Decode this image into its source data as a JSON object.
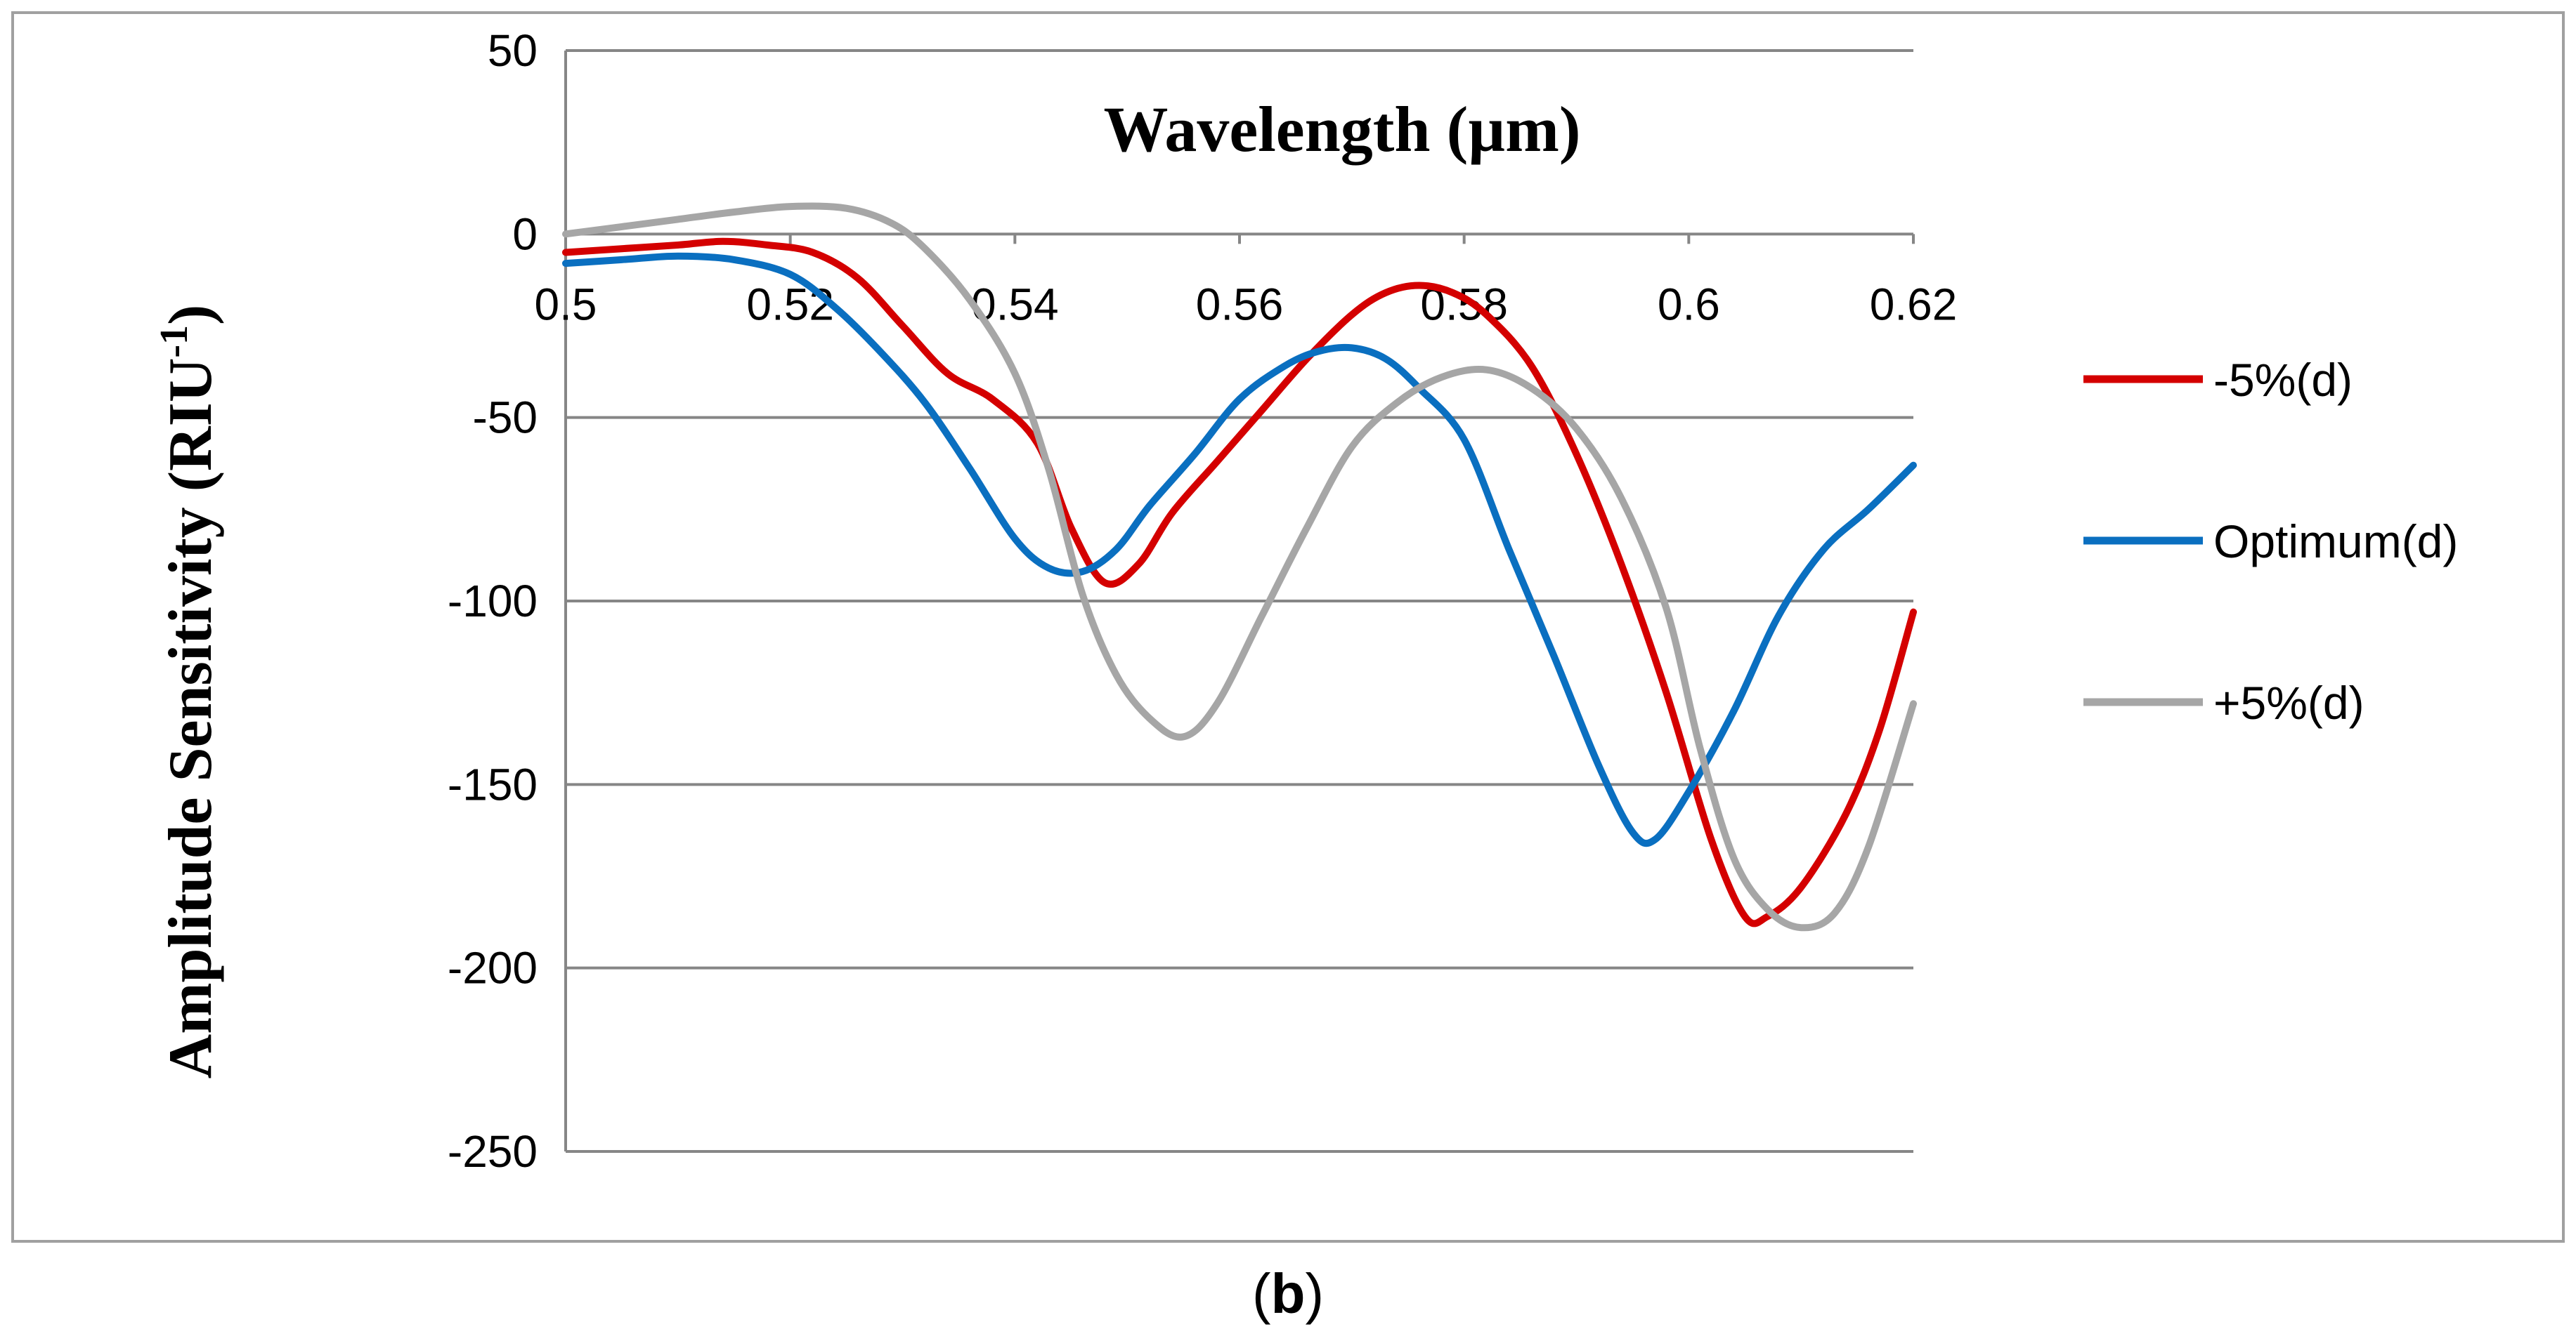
{
  "chart_data": {
    "type": "line",
    "title": "Wavelength (µm)",
    "xlabel": "Wavelength (µm)",
    "ylabel": "Amplitude Sensitivity  (RIU",
    "ylabel_sup": "-1",
    "ylabel_close": ")",
    "caption_open": "(",
    "caption_letter": "b",
    "caption_close": ")",
    "xlim": [
      0.5,
      0.62
    ],
    "ylim": [
      -250,
      50
    ],
    "x_ticks": [
      0.5,
      0.52,
      0.54,
      0.56,
      0.58,
      0.6,
      0.62
    ],
    "x_tick_labels": [
      "0.5",
      "0.52",
      "0.54",
      "0.56",
      "0.58",
      "0.6",
      "0.62"
    ],
    "y_ticks": [
      50,
      0,
      -50,
      -100,
      -150,
      -200,
      -250
    ],
    "y_tick_labels": [
      "50",
      "0",
      "-50",
      "-100",
      "-150",
      "-200",
      "-250"
    ],
    "grid": "horizontal",
    "legend_position": "right",
    "series": [
      {
        "name": "-5%(d)",
        "color": "#d40000",
        "points": [
          [
            0.5,
            -5
          ],
          [
            0.505,
            -4
          ],
          [
            0.51,
            -3
          ],
          [
            0.514,
            -2
          ],
          [
            0.518,
            -3
          ],
          [
            0.522,
            -5
          ],
          [
            0.526,
            -12
          ],
          [
            0.53,
            -25
          ],
          [
            0.534,
            -38
          ],
          [
            0.538,
            -45
          ],
          [
            0.542,
            -57
          ],
          [
            0.545,
            -80
          ],
          [
            0.548,
            -95
          ],
          [
            0.551,
            -90
          ],
          [
            0.554,
            -76
          ],
          [
            0.558,
            -62
          ],
          [
            0.562,
            -48
          ],
          [
            0.566,
            -34
          ],
          [
            0.57,
            -22
          ],
          [
            0.573,
            -16
          ],
          [
            0.576,
            -14
          ],
          [
            0.579,
            -16
          ],
          [
            0.582,
            -22
          ],
          [
            0.586,
            -36
          ],
          [
            0.59,
            -60
          ],
          [
            0.594,
            -90
          ],
          [
            0.598,
            -125
          ],
          [
            0.602,
            -165
          ],
          [
            0.605,
            -186
          ],
          [
            0.607,
            -186
          ],
          [
            0.61,
            -178
          ],
          [
            0.614,
            -158
          ],
          [
            0.617,
            -135
          ],
          [
            0.62,
            -103
          ]
        ]
      },
      {
        "name": "Optimum(d)",
        "color": "#0a6fc0",
        "points": [
          [
            0.5,
            -8
          ],
          [
            0.505,
            -7
          ],
          [
            0.51,
            -6
          ],
          [
            0.515,
            -7
          ],
          [
            0.52,
            -11
          ],
          [
            0.524,
            -20
          ],
          [
            0.528,
            -32
          ],
          [
            0.532,
            -46
          ],
          [
            0.536,
            -64
          ],
          [
            0.54,
            -83
          ],
          [
            0.543,
            -91
          ],
          [
            0.546,
            -92
          ],
          [
            0.549,
            -86
          ],
          [
            0.552,
            -74
          ],
          [
            0.556,
            -60
          ],
          [
            0.56,
            -45
          ],
          [
            0.564,
            -36
          ],
          [
            0.567,
            -32
          ],
          [
            0.57,
            -31
          ],
          [
            0.573,
            -34
          ],
          [
            0.576,
            -42
          ],
          [
            0.58,
            -56
          ],
          [
            0.584,
            -86
          ],
          [
            0.588,
            -115
          ],
          [
            0.592,
            -145
          ],
          [
            0.595,
            -163
          ],
          [
            0.597,
            -165
          ],
          [
            0.6,
            -152
          ],
          [
            0.604,
            -130
          ],
          [
            0.608,
            -104
          ],
          [
            0.612,
            -86
          ],
          [
            0.616,
            -75
          ],
          [
            0.62,
            -63
          ]
        ]
      },
      {
        "name": "+5%(d)",
        "color": "#a6a6a6",
        "points": [
          [
            0.5,
            0
          ],
          [
            0.505,
            2
          ],
          [
            0.51,
            4
          ],
          [
            0.515,
            6
          ],
          [
            0.52,
            7.5
          ],
          [
            0.525,
            7
          ],
          [
            0.529,
            3
          ],
          [
            0.532,
            -4
          ],
          [
            0.536,
            -18
          ],
          [
            0.54,
            -38
          ],
          [
            0.543,
            -64
          ],
          [
            0.546,
            -98
          ],
          [
            0.549,
            -120
          ],
          [
            0.552,
            -132
          ],
          [
            0.555,
            -137
          ],
          [
            0.558,
            -128
          ],
          [
            0.562,
            -104
          ],
          [
            0.566,
            -80
          ],
          [
            0.57,
            -58
          ],
          [
            0.574,
            -46
          ],
          [
            0.578,
            -39
          ],
          [
            0.582,
            -37
          ],
          [
            0.586,
            -42
          ],
          [
            0.59,
            -53
          ],
          [
            0.594,
            -72
          ],
          [
            0.598,
            -102
          ],
          [
            0.601,
            -140
          ],
          [
            0.604,
            -170
          ],
          [
            0.607,
            -184
          ],
          [
            0.61,
            -189
          ],
          [
            0.613,
            -185
          ],
          [
            0.616,
            -167
          ],
          [
            0.62,
            -128
          ]
        ]
      }
    ]
  }
}
